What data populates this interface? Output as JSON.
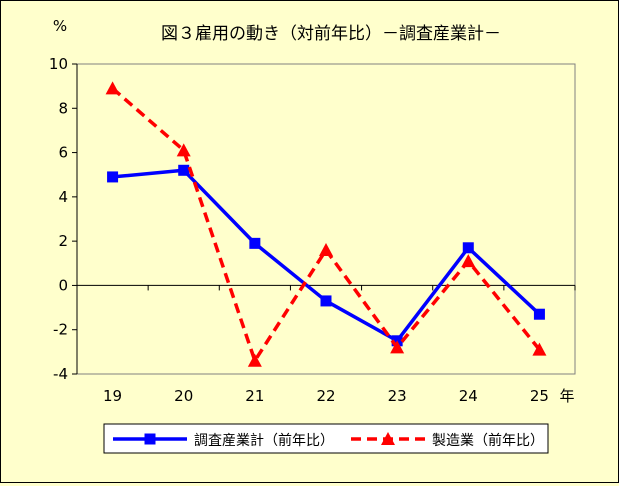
{
  "chart_data": {
    "type": "line",
    "title": "図３雇用の動き（対前年比）－調査産業計－",
    "y_unit_label": "%",
    "x_unit_label": "年",
    "categories": [
      "19",
      "20",
      "21",
      "22",
      "23",
      "24",
      "25"
    ],
    "ylim": [
      -4,
      10
    ],
    "yticks": [
      -4,
      -2,
      0,
      2,
      4,
      6,
      8,
      10
    ],
    "grid": false,
    "legend_position": "bottom",
    "series": [
      {
        "name": "調査産業計（前年比）",
        "values": [
          4.9,
          5.2,
          1.9,
          -0.7,
          -2.5,
          1.7,
          -1.3
        ],
        "color": "#0000FF",
        "line_style": "solid",
        "marker": "square"
      },
      {
        "name": "製造業（前年比）",
        "values": [
          8.9,
          6.1,
          -3.4,
          1.6,
          -2.8,
          1.1,
          -2.9
        ],
        "color": "#FF0000",
        "line_style": "dashed",
        "marker": "triangle"
      }
    ]
  }
}
